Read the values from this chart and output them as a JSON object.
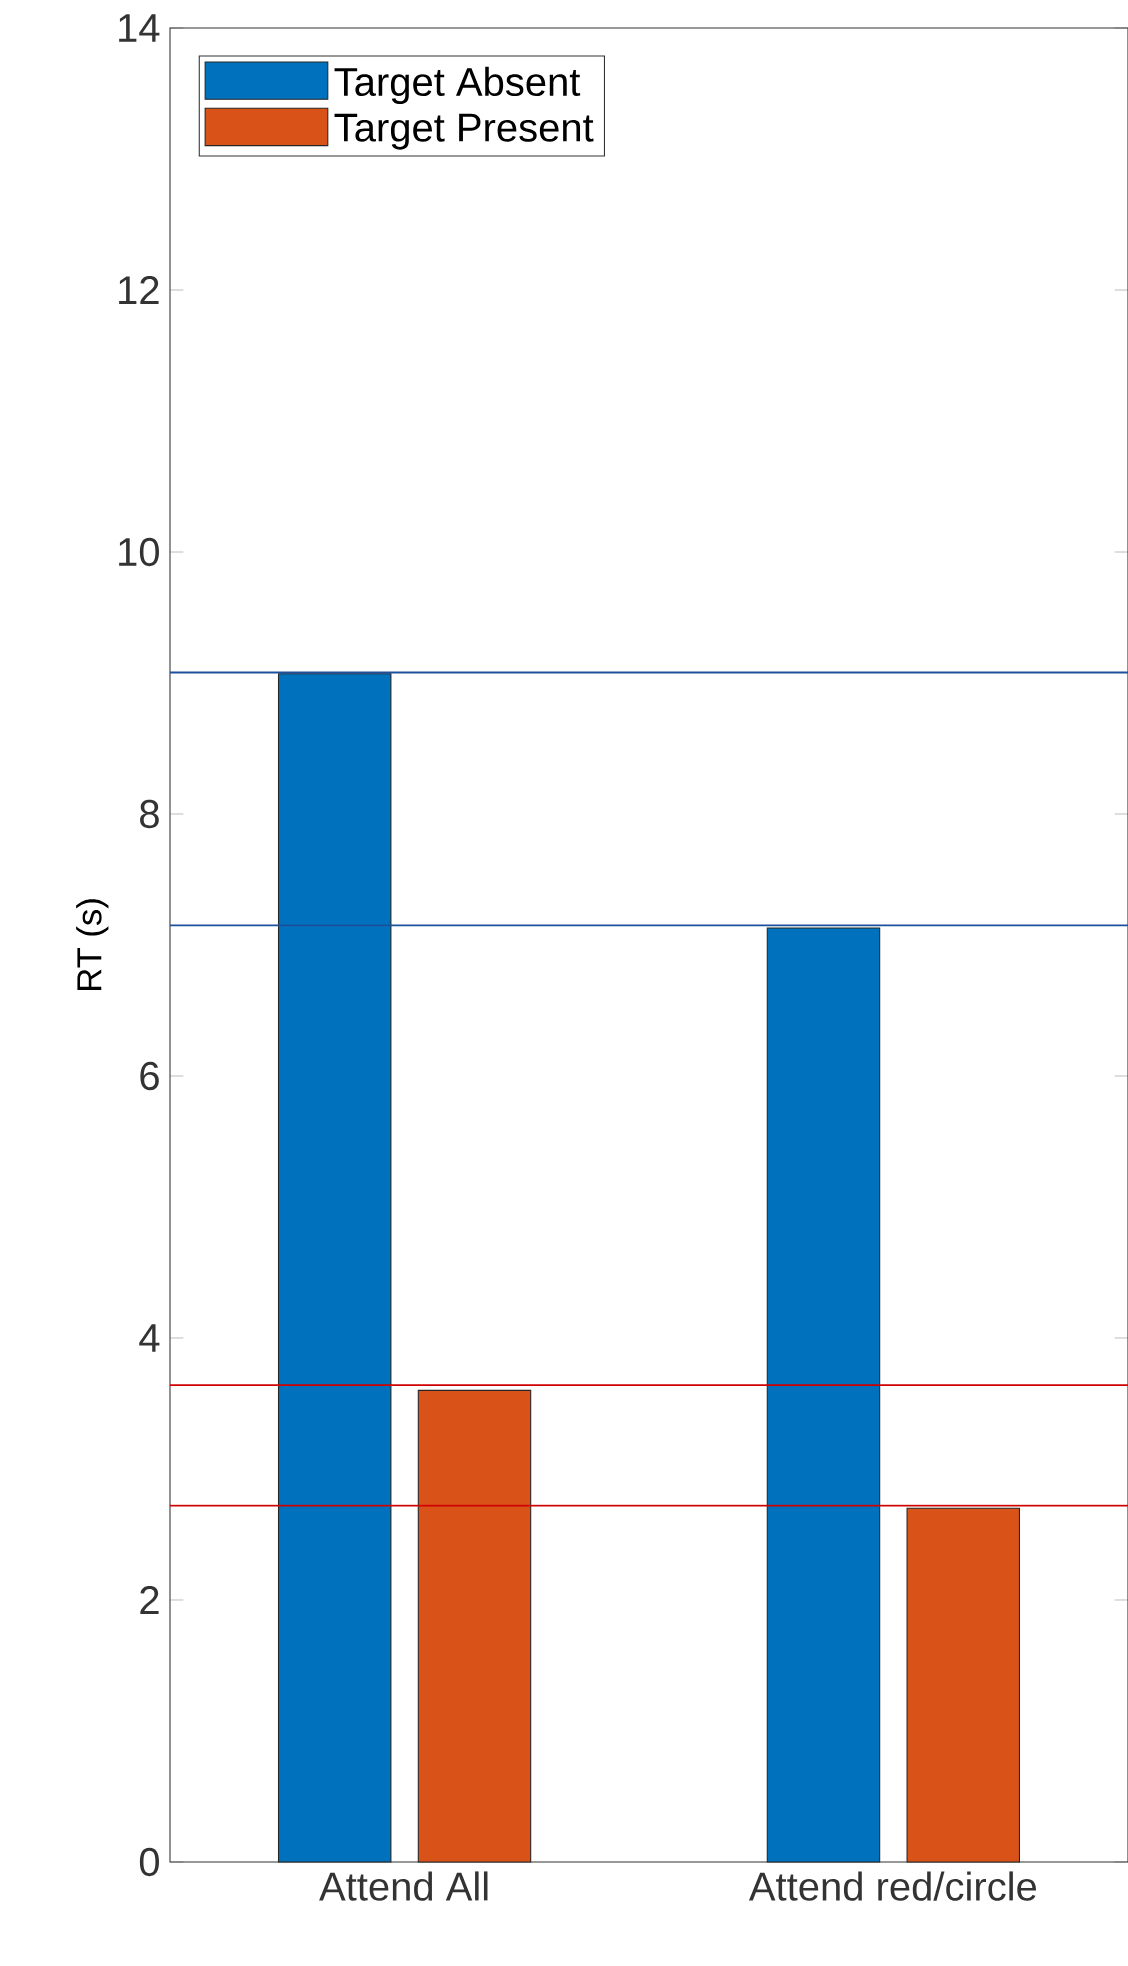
{
  "chart_data": {
    "type": "bar",
    "ylabel": "RT (s)",
    "categories": [
      "Attend All",
      "Attend red/circle"
    ],
    "series": [
      {
        "name": "Target Absent",
        "color": "#0072bd",
        "values": [
          9.07,
          7.13
        ]
      },
      {
        "name": "Target Present",
        "color": "#d95319",
        "values": [
          3.6,
          2.7
        ]
      }
    ],
    "ylim": [
      0,
      14
    ],
    "yticks": [
      0,
      2,
      4,
      6,
      8,
      10,
      12,
      14
    ],
    "legend": "top left",
    "ref_lines": [
      {
        "axis": "y",
        "value": 9.08,
        "color": "#1c4f9c"
      },
      {
        "axis": "y",
        "value": 7.15,
        "color": "#1c4f9c"
      },
      {
        "axis": "y",
        "value": 3.64,
        "color": "#d00000"
      },
      {
        "axis": "y",
        "value": 2.72,
        "color": "#d00000"
      }
    ]
  }
}
